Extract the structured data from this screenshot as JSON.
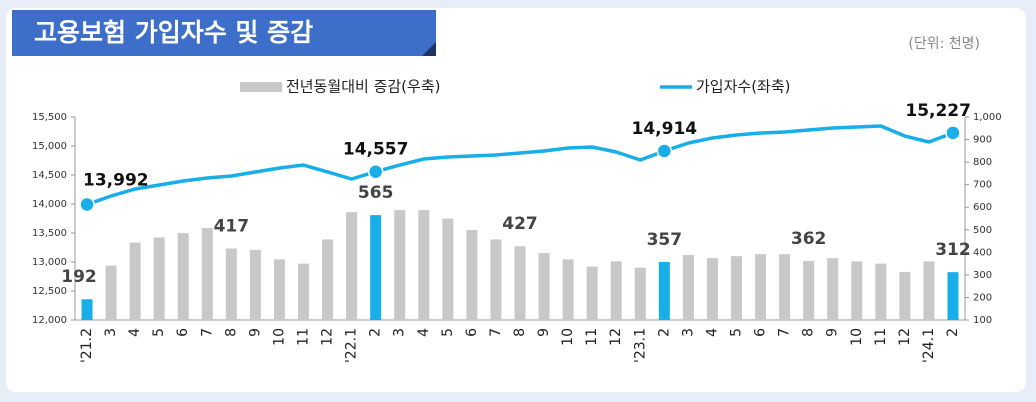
{
  "chart_data": {
    "type": "combo",
    "title": "고용보험 가입자수 및 증감",
    "unit_note": "(단위: 천명)",
    "categories": [
      "'21.2",
      "3",
      "4",
      "5",
      "6",
      "7",
      "8",
      "9",
      "10",
      "11",
      "12",
      "'22.1",
      "2",
      "3",
      "4",
      "5",
      "6",
      "7",
      "8",
      "9",
      "10",
      "11",
      "12",
      "'23.1",
      "2",
      "3",
      "4",
      "5",
      "6",
      "7",
      "8",
      "9",
      "10",
      "11",
      "12",
      "'24.1",
      "2"
    ],
    "ylim": [
      12000,
      15500
    ],
    "yticks": [
      {
        "value": 12000,
        "label": "12,000"
      },
      {
        "value": 12500,
        "label": "12,500"
      },
      {
        "value": 13000,
        "label": "13,000"
      },
      {
        "value": 13500,
        "label": "13,500"
      },
      {
        "value": 14000,
        "label": "14,000"
      },
      {
        "value": 14500,
        "label": "14,500"
      },
      {
        "value": 15000,
        "label": "15,000"
      },
      {
        "value": 15500,
        "label": "15,500"
      }
    ],
    "y2lim": [
      100,
      1000
    ],
    "y2ticks": [
      100,
      200,
      300,
      400,
      500,
      600,
      700,
      800,
      900,
      {
        "value": 1000,
        "label": "1,000"
      }
    ],
    "grid": false,
    "series": [
      {
        "name": "전년동월대비 증감(우축)",
        "type": "bar",
        "axis": "y2",
        "color": "#c8c8c8",
        "colors": [
          "#18aee8",
          "#c8c8c8",
          "#c8c8c8",
          "#c8c8c8",
          "#c8c8c8",
          "#c8c8c8",
          "#c8c8c8",
          "#c8c8c8",
          "#c8c8c8",
          "#c8c8c8",
          "#c8c8c8",
          "#c8c8c8",
          "#18aee8",
          "#c8c8c8",
          "#c8c8c8",
          "#c8c8c8",
          "#c8c8c8",
          "#c8c8c8",
          "#c8c8c8",
          "#c8c8c8",
          "#c8c8c8",
          "#c8c8c8",
          "#c8c8c8",
          "#c8c8c8",
          "#18aee8",
          "#c8c8c8",
          "#c8c8c8",
          "#c8c8c8",
          "#c8c8c8",
          "#c8c8c8",
          "#c8c8c8",
          "#c8c8c8",
          "#c8c8c8",
          "#c8c8c8",
          "#c8c8c8",
          "#c8c8c8",
          "#18aee8"
        ],
        "values": [
          192,
          341,
          443,
          466,
          485,
          508,
          417,
          411,
          369,
          350,
          457,
          578,
          565,
          587,
          587,
          550,
          499,
          457,
          427,
          397,
          369,
          337,
          360,
          332,
          357,
          388,
          374,
          383,
          392,
          392,
          362,
          374,
          360,
          350,
          313,
          360,
          312
        ],
        "value_labels": [
          "192",
          null,
          null,
          null,
          null,
          null,
          "417",
          null,
          null,
          null,
          null,
          null,
          "565",
          null,
          null,
          null,
          null,
          null,
          "427",
          null,
          null,
          null,
          null,
          null,
          "357",
          null,
          null,
          null,
          null,
          null,
          "362",
          null,
          null,
          null,
          null,
          null,
          "312"
        ]
      },
      {
        "name": "가입자수(좌축)",
        "type": "line",
        "axis": "y",
        "color": "#18aee8",
        "values": [
          13992,
          14138,
          14259,
          14328,
          14397,
          14448,
          14483,
          14552,
          14621,
          14672,
          14552,
          14431,
          14557,
          14672,
          14776,
          14810,
          14828,
          14845,
          14879,
          14914,
          14965,
          14983,
          14897,
          14759,
          14914,
          15052,
          15138,
          15190,
          15224,
          15241,
          15276,
          15310,
          15328,
          15345,
          15172,
          15069,
          15227
        ],
        "value_labels": [
          "13,992",
          null,
          null,
          null,
          null,
          null,
          null,
          null,
          null,
          null,
          null,
          null,
          "14,557",
          null,
          null,
          null,
          null,
          null,
          null,
          null,
          null,
          null,
          null,
          null,
          "14,914",
          null,
          null,
          null,
          null,
          null,
          null,
          null,
          null,
          null,
          null,
          null,
          "15,227"
        ]
      }
    ]
  }
}
